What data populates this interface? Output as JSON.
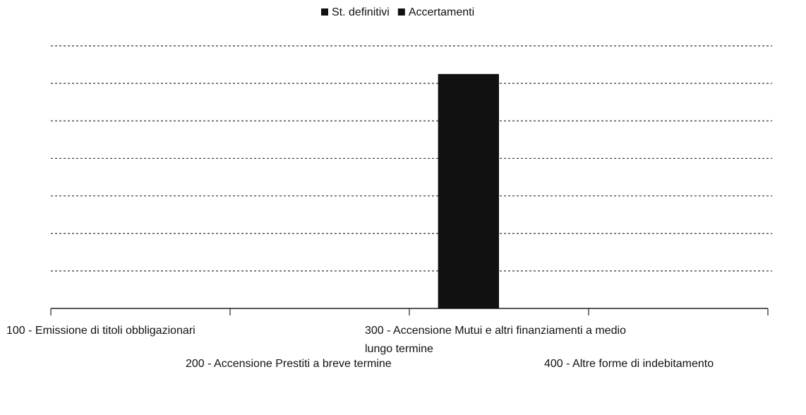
{
  "chart_data": {
    "type": "bar",
    "categories": [
      "100 - Emissione di titoli obbligazionari",
      "200 - Accensione Prestiti a breve termine",
      "300 - Accensione Mutui e altri finanziamenti a medio lungo termine",
      "400 - Altre forme di indebitamento"
    ],
    "series": [
      {
        "name": "St. definitivi",
        "color": "#111111",
        "values": [
          0,
          0,
          6.25,
          0
        ]
      },
      {
        "name": "Accertamenti",
        "color": "#111111",
        "values": [
          0,
          0,
          0,
          0
        ]
      }
    ],
    "ylim": [
      0,
      7
    ],
    "yticks": [
      0,
      1,
      2,
      3,
      4,
      5,
      6,
      7
    ],
    "grid": true,
    "legend": "top"
  }
}
